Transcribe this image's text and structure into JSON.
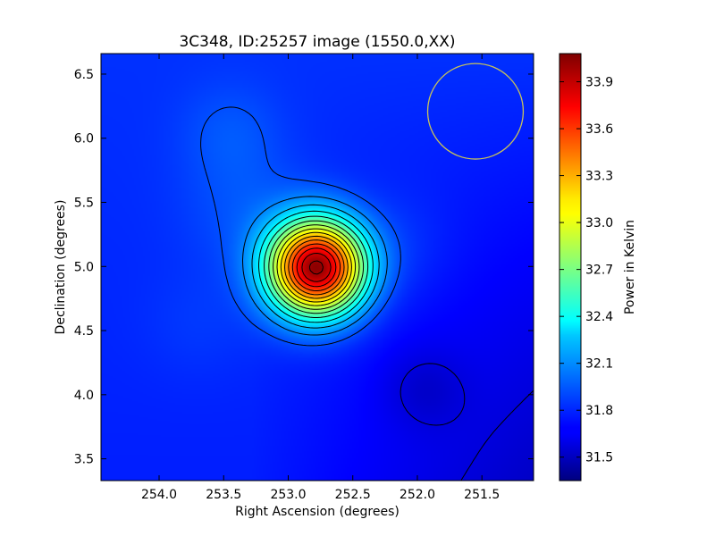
{
  "chart_data": {
    "type": "heatmap",
    "title": "3C348, ID:25257 image (1550.0,XX)",
    "xlabel": "Right Ascension (degrees)",
    "ylabel": "Declination (degrees)",
    "colorbar_label": "Power in Kelvin",
    "xlim": [
      254.45,
      251.1
    ],
    "ylim": [
      3.33,
      6.66
    ],
    "xticks": [
      254.0,
      253.5,
      253.0,
      252.5,
      252.0,
      251.5
    ],
    "xtick_labels": [
      "254.0",
      "253.5",
      "253.0",
      "252.5",
      "252.0",
      "251.5"
    ],
    "yticks": [
      3.5,
      4.0,
      4.5,
      5.0,
      5.5,
      6.0,
      6.5
    ],
    "ytick_labels": [
      "3.5",
      "4.0",
      "4.5",
      "5.0",
      "5.5",
      "6.0",
      "6.5"
    ],
    "colorbar_range": [
      31.35,
      34.08
    ],
    "colorbar_ticks": [
      31.5,
      31.8,
      32.1,
      32.4,
      32.7,
      33.0,
      33.3,
      33.6,
      33.9
    ],
    "colorbar_tick_labels": [
      "31.5",
      "31.8",
      "32.1",
      "32.4",
      "32.7",
      "33.0",
      "33.3",
      "33.6",
      "33.9"
    ],
    "colormap": "jet",
    "contour_color": "#000000",
    "source": {
      "ra": 252.78,
      "dec": 4.99,
      "peak": 34.08,
      "sigma_deg": 0.26
    },
    "background": {
      "level": 31.82,
      "gradient_low_corner": "bottom-right",
      "low_level": 31.45
    },
    "secondary_low": {
      "ra": 251.95,
      "dec": 4.05,
      "level": 31.5
    },
    "contour_levels": [
      31.6,
      31.9,
      32.05,
      32.2,
      32.35,
      32.5,
      32.65,
      32.8,
      32.95,
      33.1,
      33.25,
      33.4,
      33.55,
      33.7,
      33.85,
      34.0
    ],
    "beam_circle": {
      "ra": 251.55,
      "dec": 6.21,
      "radius_deg": 0.37,
      "color": "#c8c25a"
    },
    "grid": false
  }
}
